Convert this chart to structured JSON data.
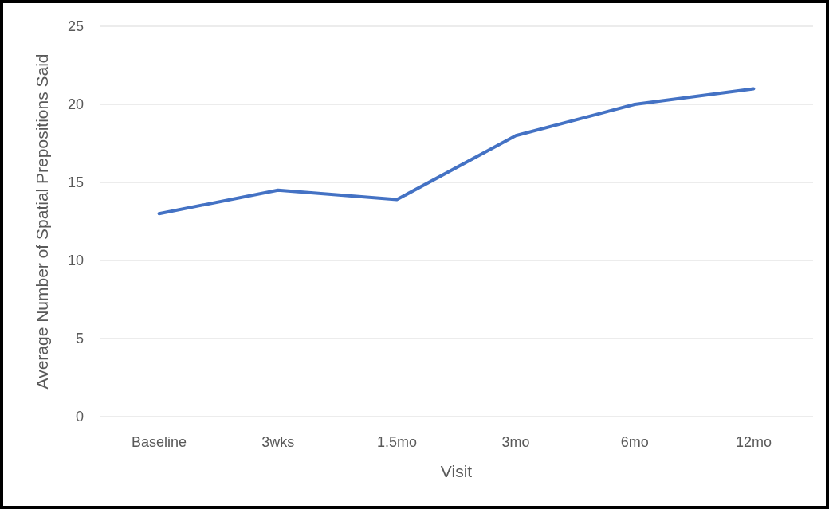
{
  "chart_data": {
    "type": "line",
    "xlabel": "Visit",
    "ylabel": "Average Number of Spatial Prepositions Said",
    "categories": [
      "Baseline",
      "3wks",
      "1.5mo",
      "3mo",
      "6mo",
      "12mo"
    ],
    "series": [
      {
        "color": "#4472c4",
        "values": [
          13,
          14.5,
          13.9,
          18,
          20,
          21
        ]
      }
    ],
    "ylim": [
      0,
      25
    ],
    "yticks": [
      0,
      5,
      10,
      15,
      20,
      25
    ],
    "grid": "y",
    "marker": "none",
    "line_style": "solid"
  }
}
